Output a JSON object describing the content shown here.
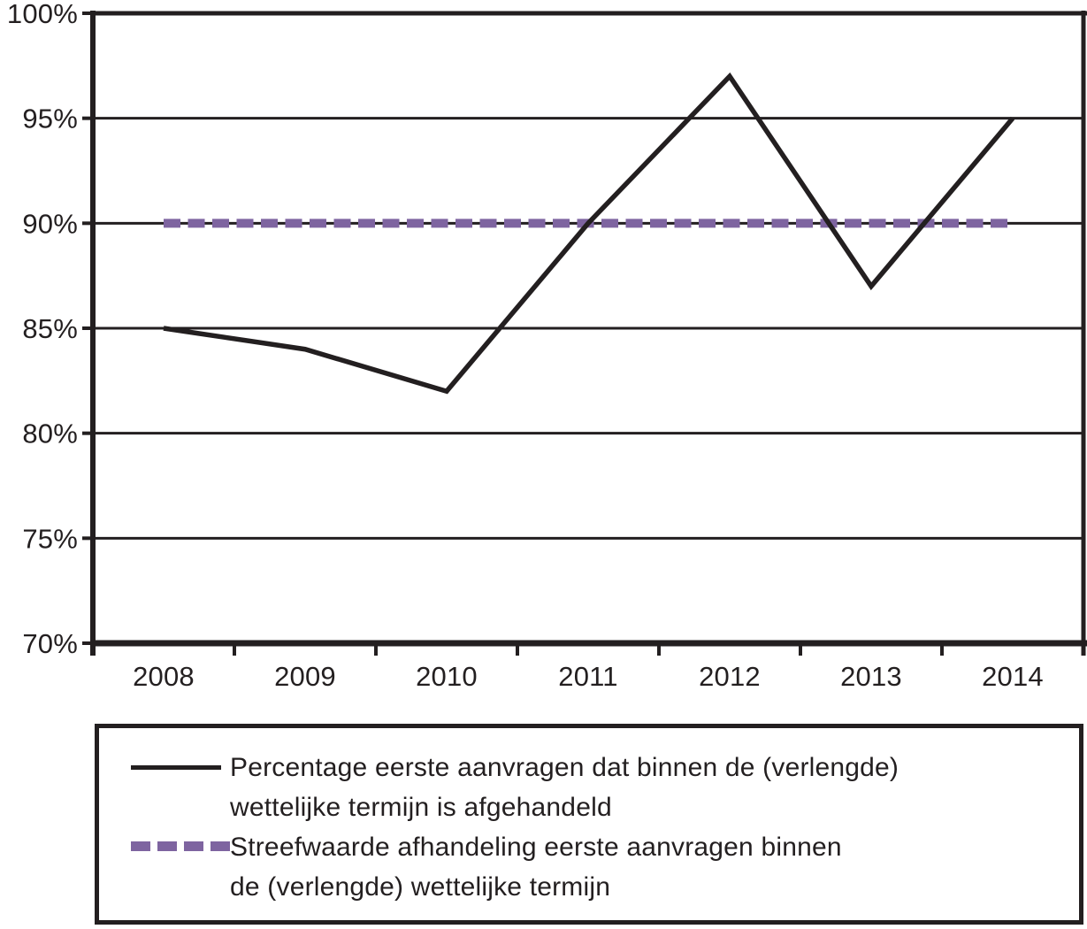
{
  "colors": {
    "line_black": "#231f20",
    "target_purple": "#7e64a0",
    "background": "#ffffff"
  },
  "chart_data": {
    "type": "line",
    "categories": [
      "2008",
      "2009",
      "2010",
      "2011",
      "2012",
      "2013",
      "2014"
    ],
    "series": [
      {
        "name": "Percentage eerste aanvragen dat binnen de (verlengde) wettelijke termijn is afgehandeld",
        "values": [
          85,
          84,
          82,
          90,
          97,
          87,
          95
        ],
        "style": "solid-black"
      },
      {
        "name": "Streefwaarde afhandeling eerste aanvragen binnen de (verlengde) wettelijke termijn",
        "values": [
          90,
          90,
          90,
          90,
          90,
          90,
          90
        ],
        "style": "dashed-purple"
      }
    ],
    "title": "",
    "xlabel": "",
    "ylabel": "",
    "ylim": [
      70,
      100
    ],
    "yticks": [
      70,
      75,
      80,
      85,
      90,
      95,
      100
    ],
    "ytick_labels": [
      "70%",
      "75%",
      "80%",
      "85%",
      "90%",
      "95%",
      "100%"
    ],
    "grid": "horizontal",
    "legend_position": "bottom-box"
  },
  "legend": {
    "entries": [
      {
        "line1": "Percentage eerste aanvragen dat binnen de (verlengde)",
        "line2": "wettelijke termijn is afgehandeld"
      },
      {
        "line1": "Streefwaarde afhandeling eerste aanvragen binnen",
        "line2": "de (verlengde) wettelijke termijn"
      }
    ]
  }
}
